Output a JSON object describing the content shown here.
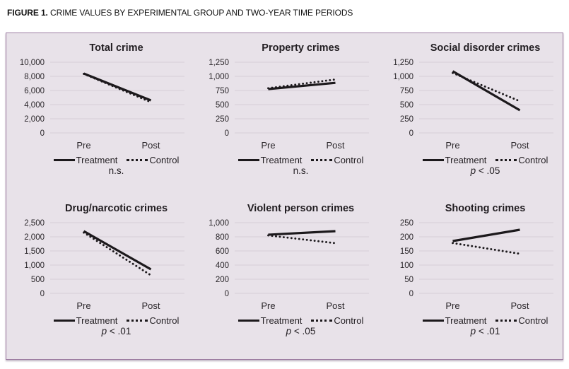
{
  "figure": {
    "label": "FIGURE 1.",
    "title": "CRIME VALUES BY EXPERIMENTAL GROUP AND TWO-YEAR TIME PERIODS"
  },
  "colors": {
    "panel_bg": "#e8e2e9",
    "panel_border": "#9c7ba1",
    "gridline": "#d6cfd8",
    "line": "#1c191c",
    "text": "#2a262a"
  },
  "chart_data": [
    {
      "type": "line",
      "title": "Total crime",
      "categories": [
        "Pre",
        "Post"
      ],
      "series": [
        {
          "name": "Treatment",
          "style": "solid",
          "values": [
            8400,
            4600
          ]
        },
        {
          "name": "Control",
          "style": "dotted",
          "values": [
            8350,
            4350
          ]
        }
      ],
      "ylim": [
        0,
        10000
      ],
      "ytick_labels": [
        "0",
        "2,000",
        "4,000",
        "6,000",
        "8,000",
        "10,000"
      ],
      "grid": true,
      "legend_position": "bottom",
      "significance": "n.s."
    },
    {
      "type": "line",
      "title": "Property crimes",
      "categories": [
        "Pre",
        "Post"
      ],
      "series": [
        {
          "name": "Treatment",
          "style": "solid",
          "values": [
            775,
            885
          ]
        },
        {
          "name": "Control",
          "style": "dotted",
          "values": [
            790,
            945
          ]
        }
      ],
      "ylim": [
        0,
        1250
      ],
      "ytick_labels": [
        "0",
        "250",
        "500",
        "750",
        "1,000",
        "1,250"
      ],
      "grid": true,
      "legend_position": "bottom",
      "significance": "n.s."
    },
    {
      "type": "line",
      "title": "Social disorder crimes",
      "categories": [
        "Pre",
        "Post"
      ],
      "series": [
        {
          "name": "Treatment",
          "style": "solid",
          "values": [
            1090,
            400
          ]
        },
        {
          "name": "Control",
          "style": "dotted",
          "values": [
            1060,
            560
          ]
        }
      ],
      "ylim": [
        0,
        1250
      ],
      "ytick_labels": [
        "0",
        "250",
        "500",
        "750",
        "1,000",
        "1,250"
      ],
      "grid": true,
      "legend_position": "bottom",
      "significance": "p < .05"
    },
    {
      "type": "line",
      "title": "Drug/narcotic crimes",
      "categories": [
        "Pre",
        "Post"
      ],
      "series": [
        {
          "name": "Treatment",
          "style": "solid",
          "values": [
            2200,
            850
          ]
        },
        {
          "name": "Control",
          "style": "dotted",
          "values": [
            2150,
            640
          ]
        }
      ],
      "ylim": [
        0,
        2500
      ],
      "ytick_labels": [
        "0",
        "500",
        "1,000",
        "1,500",
        "2,000",
        "2,500"
      ],
      "grid": true,
      "legend_position": "bottom",
      "significance": "p < .01"
    },
    {
      "type": "line",
      "title": "Violent person crimes",
      "categories": [
        "Pre",
        "Post"
      ],
      "series": [
        {
          "name": "Treatment",
          "style": "solid",
          "values": [
            830,
            880
          ]
        },
        {
          "name": "Control",
          "style": "dotted",
          "values": [
            820,
            710
          ]
        }
      ],
      "ylim": [
        0,
        1000
      ],
      "ytick_labels": [
        "0",
        "200",
        "400",
        "600",
        "800",
        "1,000"
      ],
      "grid": true,
      "legend_position": "bottom",
      "significance": "p < .05"
    },
    {
      "type": "line",
      "title": "Shooting crimes",
      "categories": [
        "Pre",
        "Post"
      ],
      "series": [
        {
          "name": "Treatment",
          "style": "solid",
          "values": [
            185,
            225
          ]
        },
        {
          "name": "Control",
          "style": "dotted",
          "values": [
            178,
            140
          ]
        }
      ],
      "ylim": [
        0,
        250
      ],
      "ytick_labels": [
        "0",
        "50",
        "100",
        "150",
        "200",
        "250"
      ],
      "grid": true,
      "legend_position": "bottom",
      "significance": "p < .01"
    }
  ]
}
